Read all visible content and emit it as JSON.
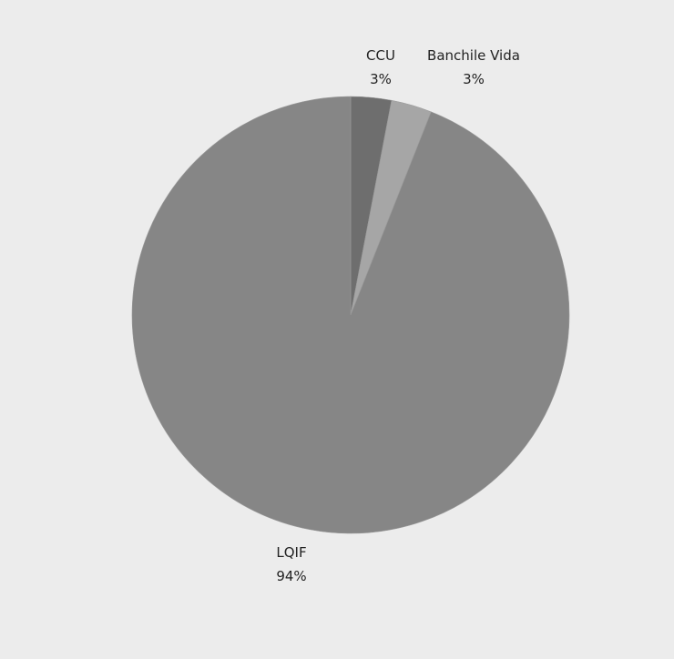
{
  "chart_data": {
    "type": "pie",
    "title": "",
    "categories": [
      "CCU",
      "Banchile Vida",
      "LQIF"
    ],
    "values": [
      3,
      3,
      94
    ],
    "value_labels": [
      "3%",
      "3%",
      "94%"
    ],
    "colors": [
      "#6e6e6e",
      "#a6a6a6",
      "#868686"
    ],
    "legend": "none"
  }
}
